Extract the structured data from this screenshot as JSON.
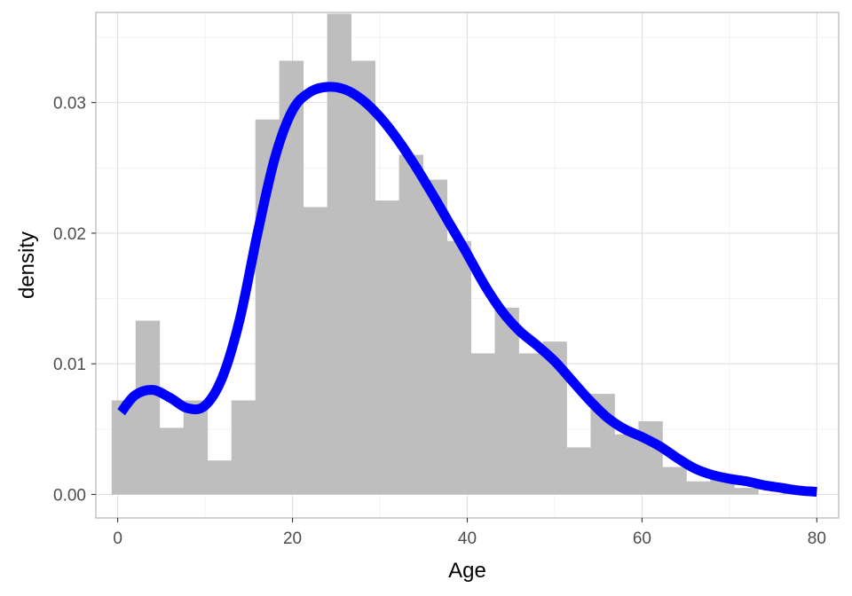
{
  "chart_data": {
    "type": "bar",
    "subtype": "histogram-with-density-curve",
    "xlabel": "Age",
    "ylabel": "density",
    "xlim": [
      -2.5,
      82.5
    ],
    "ylim": [
      -0.0018,
      0.0369
    ],
    "x_ticks": [
      0,
      20,
      40,
      60,
      80
    ],
    "x_tick_labels": [
      "0",
      "20",
      "40",
      "60",
      "80"
    ],
    "y_ticks": [
      0.0,
      0.01,
      0.02,
      0.03
    ],
    "y_tick_labels": [
      "0.00",
      "0.01",
      "0.02",
      "0.03"
    ],
    "grid": true,
    "legend": "none",
    "histogram": {
      "bin_width": 2.74,
      "bin_start": -0.69,
      "color": "#bebebe",
      "values": [
        0.0072,
        0.0133,
        0.0051,
        0.0072,
        0.0026,
        0.0072,
        0.0287,
        0.0332,
        0.022,
        0.0368,
        0.0332,
        0.0225,
        0.026,
        0.0241,
        0.0194,
        0.0108,
        0.0143,
        0.0108,
        0.0117,
        0.0036,
        0.0077,
        0.0046,
        0.0056,
        0.0021,
        0.001,
        0.0015,
        0.0005,
        0.0,
        0.0005
      ]
    },
    "density_curve": {
      "color": "#0000ff",
      "x": [
        0.4,
        2,
        4,
        6,
        8,
        10,
        12,
        14,
        16,
        18,
        20,
        22,
        24,
        26,
        28,
        30,
        32,
        34,
        36,
        38,
        40,
        42,
        44,
        46,
        48,
        50,
        52,
        54,
        56,
        58,
        60,
        62,
        64,
        66,
        68,
        70,
        72,
        74,
        76,
        78,
        80
      ],
      "y": [
        0.0063,
        0.0076,
        0.008,
        0.0074,
        0.0066,
        0.0068,
        0.009,
        0.0135,
        0.02,
        0.0258,
        0.0294,
        0.0308,
        0.0312,
        0.031,
        0.0302,
        0.0289,
        0.0272,
        0.0252,
        0.023,
        0.0207,
        0.0184,
        0.016,
        0.014,
        0.0125,
        0.0114,
        0.0102,
        0.0087,
        0.0072,
        0.0059,
        0.005,
        0.0044,
        0.0037,
        0.0028,
        0.002,
        0.0015,
        0.0012,
        0.001,
        0.0007,
        0.0005,
        0.0003,
        0.0002
      ]
    }
  }
}
